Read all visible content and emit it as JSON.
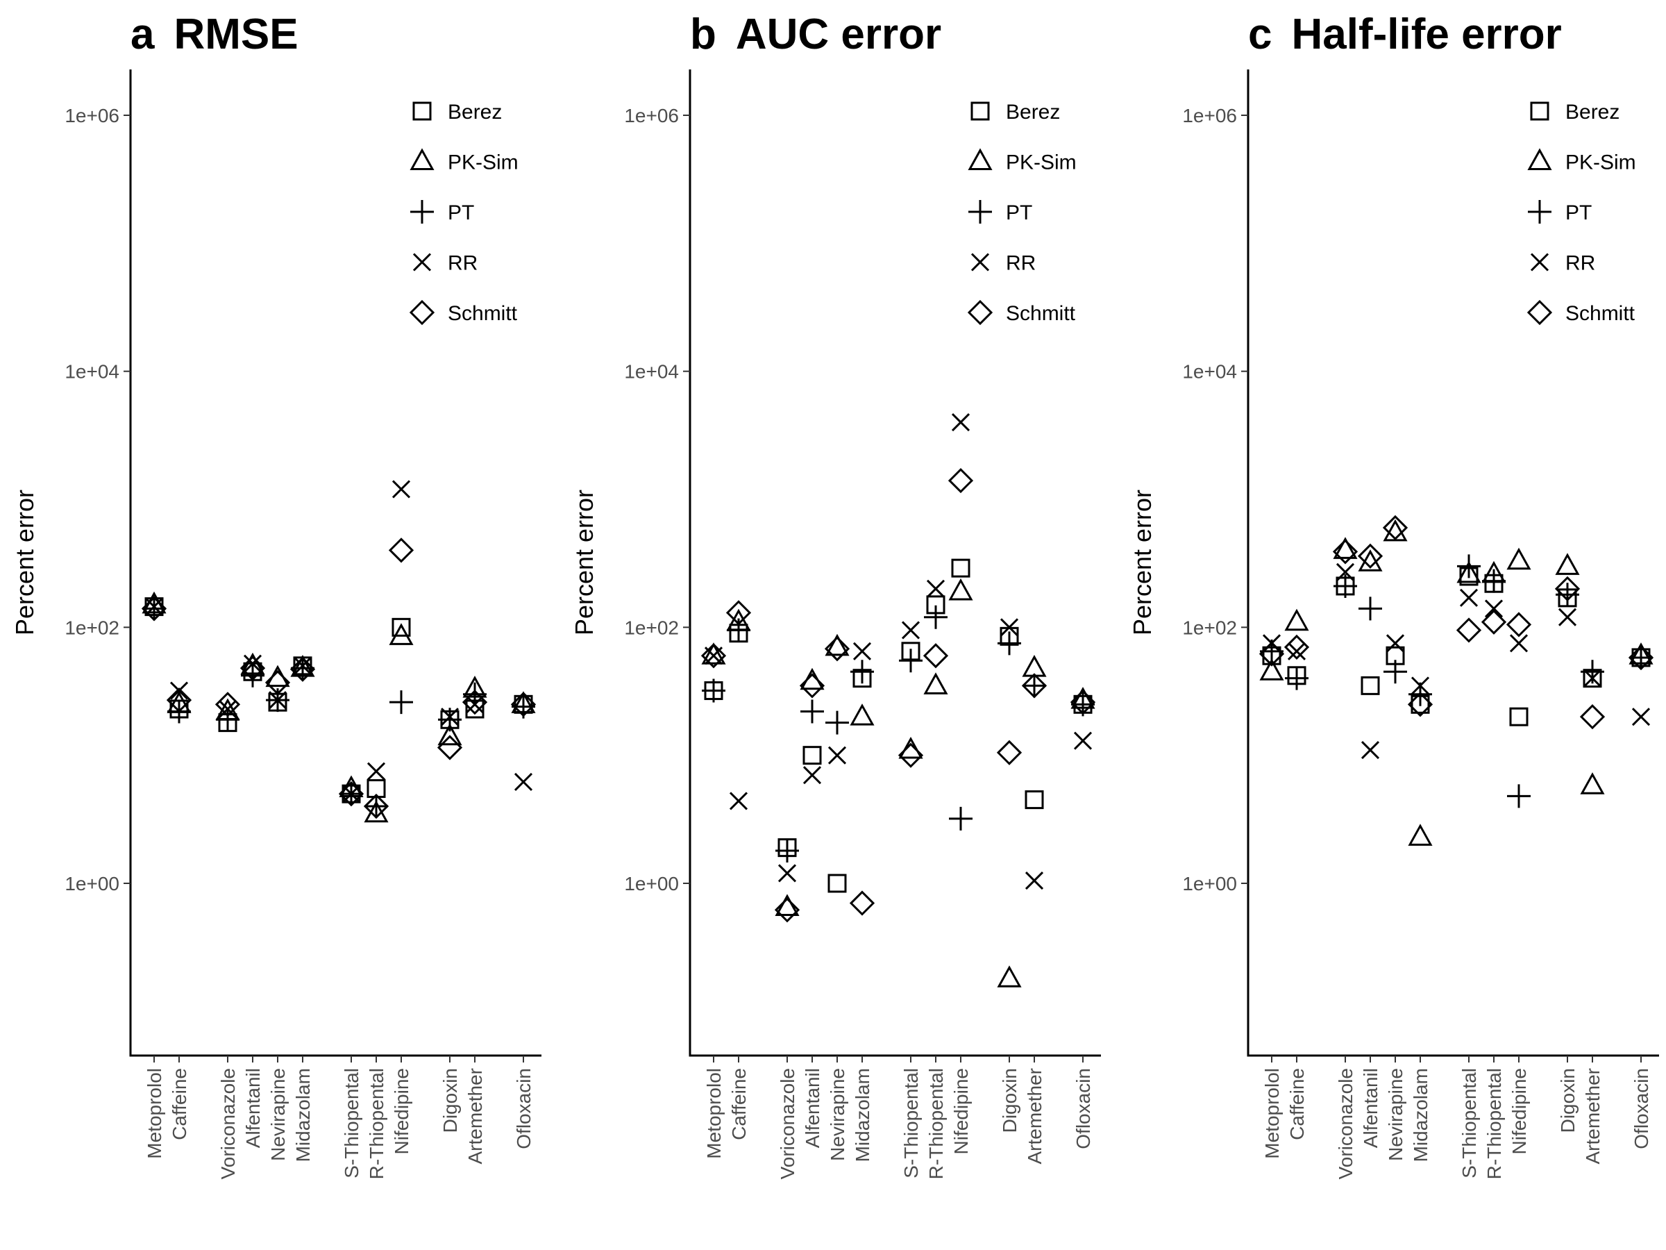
{
  "chart_data": [
    {
      "type": "scatter",
      "panel": "a",
      "title": "RMSE",
      "ylabel": "Percent error",
      "yscale": "log",
      "ylim": [
        0.04,
        1500000
      ],
      "yticks": [
        1,
        100,
        10000,
        1000000
      ],
      "ytick_labels": [
        "1e+00",
        "1e+02",
        "1e+04",
        "1e+06"
      ],
      "categories": [
        "Metoprolol",
        "Caffeine",
        "Voriconazole",
        "Alfentanil",
        "Nevirapine",
        "Midazolam",
        "S-Thiopental",
        "R-Thiopental",
        "Nifedipine",
        "Digoxin",
        "Artemether",
        "Ofloxacin"
      ],
      "legend": [
        "Berez",
        "PK-Sim",
        "PT",
        "RR",
        "Schmitt"
      ],
      "legend_position": "top-right",
      "grid": false,
      "series": [
        {
          "name": "Berez",
          "values": [
            145,
            23,
            18,
            45,
            26,
            50,
            5,
            5.5,
            100,
            19,
            23,
            25
          ]
        },
        {
          "name": "PK-Sim",
          "values": [
            150,
            25,
            22,
            50,
            40,
            48,
            5.5,
            3.5,
            85,
            14,
            33,
            25
          ]
        },
        {
          "name": "PT",
          "values": [
            140,
            22,
            19,
            42,
            27,
            48,
            5,
            4,
            26,
            19,
            30,
            24
          ]
        },
        {
          "name": "RR",
          "values": [
            145,
            32,
            23,
            52,
            27,
            50,
            5,
            7.5,
            1200,
            20,
            25,
            6.2
          ]
        },
        {
          "name": "Schmitt",
          "values": [
            140,
            27,
            25,
            48,
            37,
            47,
            5,
            4,
            400,
            11.5,
            26,
            25
          ]
        }
      ]
    },
    {
      "type": "scatter",
      "panel": "b",
      "title": "AUC error",
      "ylabel": "Percent error",
      "yscale": "log",
      "ylim": [
        0.04,
        1500000
      ],
      "yticks": [
        1,
        100,
        10000,
        1000000
      ],
      "ytick_labels": [
        "1e+00",
        "1e+02",
        "1e+04",
        "1e+06"
      ],
      "categories": [
        "Metoprolol",
        "Caffeine",
        "Voriconazole",
        "Alfentanil",
        "Nevirapine",
        "Midazolam",
        "S-Thiopental",
        "R-Thiopental",
        "Nifedipine",
        "Digoxin",
        "Artemether",
        "Ofloxacin"
      ],
      "legend": [
        "Berez",
        "PK-Sim",
        "PT",
        "RR",
        "Schmitt"
      ],
      "legend_position": "top-right",
      "grid": false,
      "series": [
        {
          "name": "Berez",
          "values": [
            32,
            90,
            1.9,
            10,
            1,
            40,
            65,
            150,
            290,
            85,
            4.5,
            25
          ]
        },
        {
          "name": "PK-Sim",
          "values": [
            60,
            110,
            0.65,
            38,
            70,
            20,
            11,
            35,
            190,
            0.18,
            48,
            27
          ]
        },
        {
          "name": "PT",
          "values": [
            32,
            95,
            1.8,
            22,
            18,
            45,
            55,
            120,
            3.2,
            75,
            35,
            25
          ]
        },
        {
          "name": "RR",
          "values": [
            60,
            4.4,
            1.2,
            7,
            10,
            65,
            95,
            200,
            4000,
            100,
            1.05,
            13
          ]
        },
        {
          "name": "Schmitt",
          "values": [
            60,
            130,
            0.62,
            35,
            68,
            0.7,
            10,
            60,
            1400,
            10.5,
            35,
            26
          ]
        }
      ]
    },
    {
      "type": "scatter",
      "panel": "c",
      "title": "Half-life error",
      "ylabel": "Percent error",
      "yscale": "log",
      "ylim": [
        0.04,
        1500000
      ],
      "yticks": [
        1,
        100,
        10000,
        1000000
      ],
      "ytick_labels": [
        "1e+00",
        "1e+02",
        "1e+04",
        "1e+06"
      ],
      "categories": [
        "Metoprolol",
        "Caffeine",
        "Voriconazole",
        "Alfentanil",
        "Nevirapine",
        "Midazolam",
        "S-Thiopental",
        "R-Thiopental",
        "Nifedipine",
        "Digoxin",
        "Artemether",
        "Ofloxacin"
      ],
      "legend": [
        "Berez",
        "PK-Sim",
        "PT",
        "RR",
        "Schmitt"
      ],
      "legend_position": "top-right",
      "grid": false,
      "series": [
        {
          "name": "Berez",
          "values": [
            60,
            42,
            210,
            35,
            60,
            25,
            250,
            220,
            20,
            170,
            40,
            58
          ]
        },
        {
          "name": "PK-Sim",
          "values": [
            45,
            110,
            400,
            320,
            550,
            2.3,
            260,
            260,
            330,
            300,
            5.8,
            60
          ]
        },
        {
          "name": "PT",
          "values": [
            65,
            40,
            210,
            140,
            45,
            30,
            300,
            230,
            4.8,
            180,
            45,
            58
          ]
        },
        {
          "name": "RR",
          "values": [
            75,
            65,
            270,
            11,
            75,
            35,
            170,
            140,
            75,
            120,
            40,
            20
          ]
        },
        {
          "name": "Schmitt",
          "values": [
            62,
            70,
            390,
            360,
            600,
            25,
            95,
            110,
            105,
            200,
            20,
            58
          ]
        }
      ]
    }
  ]
}
